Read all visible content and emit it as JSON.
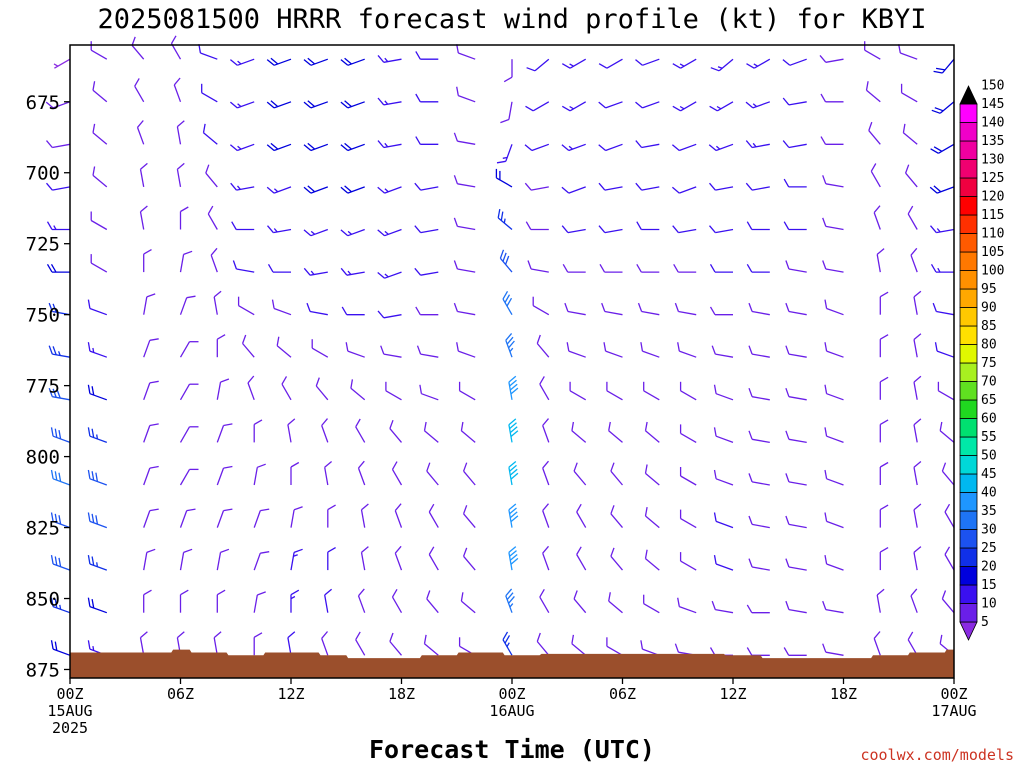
{
  "header": {
    "title": "2025081500 HRRR forecast wind profile (kt) for KBYI"
  },
  "footer": {
    "watermark": "coolwx.com/models"
  },
  "colors": {
    "terrain": "#9b4f2c",
    "frame": "#000000",
    "light_winds": "#8a2be2",
    "moderate_winds": "#2040e0",
    "strong_winds": "#1e90ff"
  },
  "chart_data": {
    "type": "wind_barb_profile",
    "title": "2025081500 HRRR forecast wind profile (kt) for KBYI",
    "xlabel": "Forecast Time (UTC)",
    "ylabel": "",
    "units": "kt",
    "x_range_hours": [
      0,
      48
    ],
    "y_range_hpa": [
      655,
      878
    ],
    "x_ticks": [
      {
        "hour": 0,
        "label": "00Z",
        "sub1": "15AUG",
        "sub2": "2025"
      },
      {
        "hour": 6,
        "label": "06Z",
        "sub1": "",
        "sub2": ""
      },
      {
        "hour": 12,
        "label": "12Z",
        "sub1": "",
        "sub2": ""
      },
      {
        "hour": 18,
        "label": "18Z",
        "sub1": "",
        "sub2": ""
      },
      {
        "hour": 24,
        "label": "00Z",
        "sub1": "16AUG",
        "sub2": ""
      },
      {
        "hour": 30,
        "label": "06Z",
        "sub1": "",
        "sub2": ""
      },
      {
        "hour": 36,
        "label": "12Z",
        "sub1": "",
        "sub2": ""
      },
      {
        "hour": 42,
        "label": "18Z",
        "sub1": "",
        "sub2": ""
      },
      {
        "hour": 48,
        "label": "00Z",
        "sub1": "17AUG",
        "sub2": ""
      }
    ],
    "y_ticks": [
      675,
      700,
      725,
      750,
      775,
      800,
      825,
      850,
      875
    ],
    "levels_hpa": [
      660,
      675,
      690,
      705,
      720,
      735,
      750,
      765,
      780,
      795,
      810,
      825,
      840,
      855,
      870
    ],
    "wind_rows": [
      {
        "hour": 0,
        "dirs": [
          240,
          250,
          260,
          260,
          270,
          270,
          280,
          280,
          280,
          290,
          290,
          290,
          290,
          290,
          290
        ],
        "speeds": [
          5,
          8,
          10,
          12,
          15,
          18,
          22,
          25,
          28,
          30,
          32,
          30,
          28,
          25,
          20
        ]
      },
      {
        "hour": 2,
        "dirs": [
          300,
          310,
          310,
          310,
          300,
          300,
          290,
          290,
          290,
          290,
          290,
          290,
          290,
          290,
          290
        ],
        "speeds": [
          8,
          8,
          8,
          8,
          8,
          10,
          12,
          15,
          20,
          25,
          28,
          28,
          25,
          20,
          15
        ]
      },
      {
        "hour": 4,
        "dirs": [
          320,
          330,
          340,
          350,
          350,
          360,
          10,
          20,
          20,
          20,
          20,
          20,
          10,
          360,
          350
        ],
        "speeds": [
          8,
          8,
          8,
          8,
          8,
          8,
          8,
          8,
          10,
          10,
          10,
          10,
          10,
          8,
          8
        ]
      },
      {
        "hour": 6,
        "dirs": [
          330,
          340,
          350,
          350,
          360,
          10,
          20,
          30,
          30,
          30,
          30,
          20,
          10,
          360,
          350
        ],
        "speeds": [
          8,
          8,
          8,
          8,
          8,
          8,
          8,
          8,
          10,
          10,
          10,
          10,
          10,
          8,
          8
        ]
      },
      {
        "hour": 8,
        "dirs": [
          290,
          300,
          310,
          320,
          330,
          340,
          350,
          360,
          10,
          20,
          20,
          20,
          10,
          360,
          350
        ],
        "speeds": [
          12,
          12,
          12,
          10,
          10,
          10,
          10,
          10,
          10,
          10,
          10,
          10,
          8,
          8,
          8
        ]
      },
      {
        "hour": 10,
        "dirs": [
          250,
          250,
          250,
          260,
          270,
          280,
          300,
          320,
          340,
          360,
          10,
          20,
          20,
          10,
          360
        ],
        "speeds": [
          15,
          15,
          15,
          15,
          12,
          12,
          10,
          10,
          10,
          10,
          10,
          10,
          8,
          8,
          8
        ]
      },
      {
        "hour": 12,
        "dirs": [
          250,
          250,
          250,
          250,
          260,
          270,
          290,
          310,
          330,
          350,
          360,
          10,
          10,
          360,
          350
        ],
        "speeds": [
          18,
          18,
          18,
          15,
          15,
          12,
          10,
          10,
          10,
          10,
          10,
          10,
          15,
          15,
          12
        ]
      },
      {
        "hour": 14,
        "dirs": [
          250,
          250,
          250,
          250,
          250,
          260,
          280,
          300,
          320,
          340,
          350,
          360,
          360,
          350,
          340
        ],
        "speeds": [
          18,
          18,
          18,
          18,
          15,
          15,
          12,
          10,
          10,
          10,
          10,
          10,
          12,
          12,
          10
        ]
      },
      {
        "hour": 16,
        "dirs": [
          250,
          250,
          250,
          250,
          250,
          260,
          270,
          290,
          310,
          330,
          340,
          350,
          350,
          340,
          330
        ],
        "speeds": [
          18,
          18,
          18,
          18,
          15,
          15,
          12,
          10,
          10,
          10,
          10,
          10,
          10,
          10,
          10
        ]
      },
      {
        "hour": 18,
        "dirs": [
          260,
          260,
          260,
          250,
          250,
          250,
          260,
          280,
          300,
          320,
          330,
          340,
          340,
          330,
          320
        ],
        "speeds": [
          15,
          15,
          15,
          15,
          15,
          15,
          12,
          10,
          10,
          10,
          10,
          10,
          10,
          10,
          10
        ]
      },
      {
        "hour": 20,
        "dirs": [
          270,
          270,
          270,
          260,
          260,
          260,
          270,
          280,
          290,
          310,
          320,
          330,
          330,
          320,
          310
        ],
        "speeds": [
          12,
          12,
          12,
          12,
          12,
          12,
          10,
          10,
          10,
          10,
          10,
          10,
          10,
          10,
          10
        ]
      },
      {
        "hour": 22,
        "dirs": [
          290,
          290,
          280,
          280,
          280,
          280,
          280,
          290,
          300,
          310,
          320,
          320,
          320,
          310,
          300
        ],
        "speeds": [
          10,
          10,
          10,
          10,
          10,
          10,
          10,
          10,
          10,
          10,
          10,
          10,
          10,
          10,
          10
        ]
      },
      {
        "hour": 24,
        "dirs": [
          180,
          190,
          200,
          300,
          310,
          320,
          330,
          340,
          350,
          350,
          350,
          350,
          350,
          340,
          330
        ],
        "speeds": [
          8,
          10,
          15,
          20,
          25,
          28,
          32,
          35,
          40,
          42,
          42,
          40,
          38,
          35,
          25
        ]
      },
      {
        "hour": 26,
        "dirs": [
          230,
          240,
          250,
          260,
          270,
          280,
          300,
          320,
          330,
          340,
          340,
          340,
          340,
          330,
          320
        ],
        "speeds": [
          12,
          12,
          12,
          10,
          10,
          8,
          8,
          8,
          8,
          8,
          8,
          8,
          8,
          8,
          8
        ]
      },
      {
        "hour": 28,
        "dirs": [
          240,
          240,
          250,
          250,
          260,
          270,
          280,
          290,
          300,
          310,
          320,
          330,
          330,
          320,
          310
        ],
        "speeds": [
          15,
          15,
          15,
          12,
          12,
          10,
          10,
          10,
          10,
          10,
          10,
          10,
          10,
          10,
          10
        ]
      },
      {
        "hour": 30,
        "dirs": [
          240,
          250,
          250,
          260,
          260,
          270,
          280,
          290,
          300,
          310,
          320,
          320,
          320,
          310,
          300
        ],
        "speeds": [
          12,
          12,
          12,
          12,
          12,
          10,
          10,
          10,
          10,
          10,
          10,
          10,
          10,
          10,
          10
        ]
      },
      {
        "hour": 32,
        "dirs": [
          250,
          250,
          260,
          260,
          270,
          270,
          280,
          290,
          300,
          310,
          310,
          310,
          310,
          300,
          290
        ],
        "speeds": [
          12,
          12,
          12,
          12,
          12,
          10,
          10,
          10,
          10,
          10,
          10,
          10,
          10,
          10,
          10
        ]
      },
      {
        "hour": 34,
        "dirs": [
          240,
          240,
          250,
          250,
          260,
          270,
          280,
          290,
          300,
          300,
          300,
          300,
          300,
          290,
          280
        ],
        "speeds": [
          15,
          15,
          12,
          12,
          12,
          10,
          10,
          10,
          10,
          10,
          10,
          10,
          10,
          10,
          10
        ]
      },
      {
        "hour": 36,
        "dirs": [
          230,
          240,
          250,
          260,
          260,
          270,
          270,
          280,
          290,
          290,
          290,
          290,
          290,
          280,
          270
        ],
        "speeds": [
          15,
          15,
          15,
          12,
          12,
          12,
          10,
          10,
          10,
          10,
          10,
          12,
          12,
          10,
          10
        ]
      },
      {
        "hour": 38,
        "dirs": [
          240,
          250,
          260,
          260,
          270,
          270,
          280,
          280,
          280,
          280,
          280,
          280,
          280,
          270,
          270
        ],
        "speeds": [
          15,
          15,
          15,
          12,
          12,
          12,
          10,
          10,
          10,
          10,
          10,
          10,
          10,
          10,
          10
        ]
      },
      {
        "hour": 40,
        "dirs": [
          250,
          260,
          260,
          270,
          270,
          280,
          280,
          280,
          280,
          280,
          280,
          280,
          280,
          280,
          270
        ],
        "speeds": [
          12,
          12,
          12,
          12,
          12,
          10,
          10,
          10,
          10,
          10,
          10,
          10,
          10,
          10,
          10
        ]
      },
      {
        "hour": 42,
        "dirs": [
          260,
          270,
          270,
          280,
          280,
          280,
          290,
          290,
          290,
          290,
          290,
          290,
          290,
          280,
          280
        ],
        "speeds": [
          10,
          10,
          10,
          10,
          10,
          10,
          10,
          10,
          10,
          10,
          10,
          10,
          10,
          10,
          10
        ]
      },
      {
        "hour": 44,
        "dirs": [
          300,
          310,
          320,
          330,
          340,
          350,
          360,
          360,
          360,
          360,
          360,
          360,
          360,
          350,
          340
        ],
        "speeds": [
          8,
          8,
          8,
          8,
          8,
          8,
          8,
          8,
          8,
          8,
          8,
          8,
          8,
          8,
          8
        ]
      },
      {
        "hour": 46,
        "dirs": [
          290,
          300,
          310,
          320,
          330,
          340,
          350,
          350,
          350,
          350,
          350,
          350,
          350,
          340,
          330
        ],
        "speeds": [
          8,
          8,
          8,
          8,
          8,
          8,
          8,
          8,
          8,
          8,
          8,
          8,
          8,
          8,
          8
        ]
      },
      {
        "hour": 48,
        "dirs": [
          220,
          230,
          240,
          250,
          260,
          270,
          280,
          290,
          300,
          310,
          320,
          330,
          330,
          320,
          310
        ],
        "speeds": [
          20,
          20,
          18,
          18,
          15,
          15,
          12,
          12,
          10,
          10,
          10,
          10,
          10,
          10,
          10
        ]
      }
    ],
    "terrain_hpa": [
      {
        "hour": 0,
        "p": 869
      },
      {
        "hour": 5.5,
        "p": 869
      },
      {
        "hour": 5.6,
        "p": 868
      },
      {
        "hour": 6.5,
        "p": 868
      },
      {
        "hour": 6.6,
        "p": 869
      },
      {
        "hour": 8.5,
        "p": 869
      },
      {
        "hour": 8.6,
        "p": 870
      },
      {
        "hour": 10.5,
        "p": 870
      },
      {
        "hour": 10.6,
        "p": 869
      },
      {
        "hour": 13.5,
        "p": 869
      },
      {
        "hour": 13.6,
        "p": 870
      },
      {
        "hour": 15.0,
        "p": 870
      },
      {
        "hour": 15.1,
        "p": 871
      },
      {
        "hour": 19.0,
        "p": 871
      },
      {
        "hour": 19.1,
        "p": 870
      },
      {
        "hour": 21.0,
        "p": 870
      },
      {
        "hour": 21.1,
        "p": 869
      },
      {
        "hour": 23.5,
        "p": 869
      },
      {
        "hour": 23.6,
        "p": 870
      },
      {
        "hour": 25.5,
        "p": 870
      },
      {
        "hour": 25.6,
        "p": 869.5
      },
      {
        "hour": 35.5,
        "p": 869.5
      },
      {
        "hour": 35.6,
        "p": 870
      },
      {
        "hour": 37.5,
        "p": 870
      },
      {
        "hour": 37.6,
        "p": 871
      },
      {
        "hour": 43.5,
        "p": 871
      },
      {
        "hour": 43.6,
        "p": 870
      },
      {
        "hour": 45.5,
        "p": 870
      },
      {
        "hour": 45.6,
        "p": 869
      },
      {
        "hour": 47.5,
        "p": 869
      },
      {
        "hour": 47.6,
        "p": 868
      },
      {
        "hour": 48,
        "p": 868
      }
    ],
    "colorbar": {
      "levels": [
        5,
        10,
        15,
        20,
        25,
        30,
        35,
        40,
        45,
        50,
        55,
        60,
        65,
        70,
        75,
        80,
        85,
        90,
        95,
        100,
        105,
        110,
        115,
        120,
        125,
        130,
        135,
        140,
        145,
        150
      ],
      "colors": [
        "#8a2be2",
        "#6a1fe8",
        "#3a10f0",
        "#0000dd",
        "#1030e8",
        "#1c52f0",
        "#1e74f5",
        "#1e96ff",
        "#00b8f0",
        "#00d8d8",
        "#00e8a8",
        "#00e070",
        "#20d820",
        "#60e020",
        "#a8f020",
        "#e0f800",
        "#ffe000",
        "#ffc800",
        "#ffa800",
        "#ff9000",
        "#ff7800",
        "#ff5a00",
        "#ff3000",
        "#ff0000",
        "#f00040",
        "#f00070",
        "#f000a0",
        "#f000c8",
        "#ff00ff",
        "#000000"
      ]
    }
  }
}
